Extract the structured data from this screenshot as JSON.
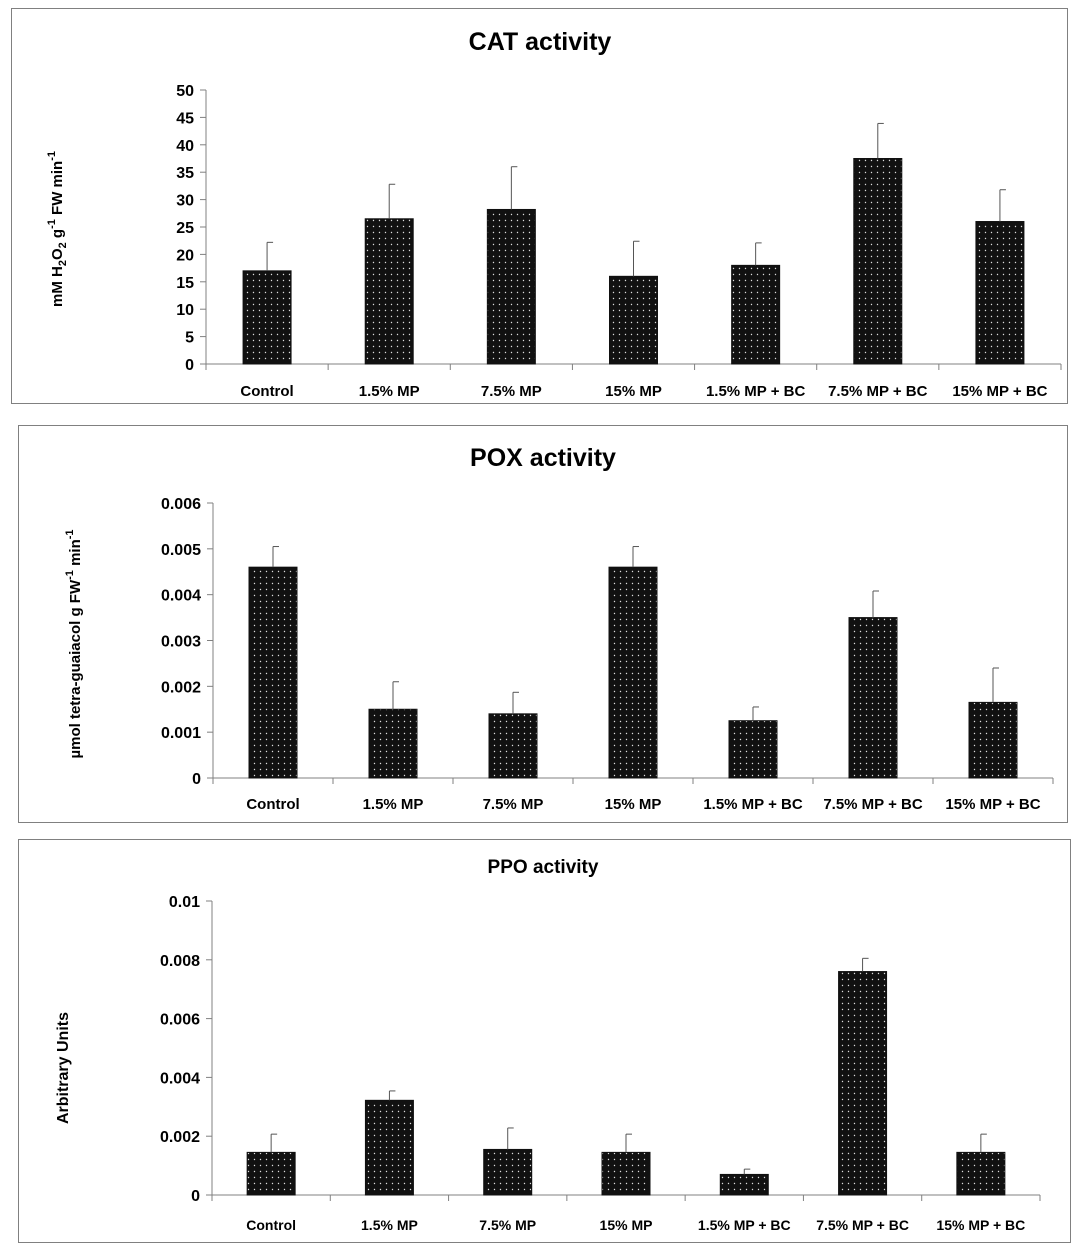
{
  "colors": {
    "bar": "#111111",
    "dot": "#ffffff",
    "axis": "#808080",
    "border": "#808080"
  },
  "chart_data": [
    {
      "type": "bar",
      "title": "CAT activity",
      "ylabel_parts": {
        "a": "mM H",
        "sub1": "2",
        "b": "O",
        "sub2": "2",
        "c": " g",
        "sup1": "-1",
        "d": " FW min",
        "sup2": "-1"
      },
      "ylabel": "mM H2O2 g-1 FW min-1",
      "xlabel": "",
      "categories": [
        "Control",
        "1.5% MP",
        "7.5% MP",
        "15% MP",
        "1.5% MP + BC",
        "7.5% MP + BC",
        "15% MP + BC"
      ],
      "values": [
        17,
        26.5,
        28.2,
        16,
        18,
        37.5,
        26
      ],
      "errors": [
        5.2,
        6.3,
        7.8,
        6.4,
        4.1,
        6.4,
        5.8
      ],
      "ylim": [
        0,
        50
      ],
      "yticks": [
        "0",
        "5",
        "10",
        "15",
        "20",
        "25",
        "30",
        "35",
        "40",
        "45",
        "50"
      ],
      "ytick_values": [
        0,
        5,
        10,
        15,
        20,
        25,
        30,
        35,
        40,
        45,
        50
      ]
    },
    {
      "type": "bar",
      "title": "POX activity",
      "ylabel_parts": {
        "a": "µmol tetra-guaiacol  g FW",
        "sup1": "-1",
        "b": " min",
        "sup2": "-1"
      },
      "ylabel": "µmol tetra-guaiacol g FW-1 min-1",
      "xlabel": "",
      "categories": [
        "Control",
        "1.5% MP",
        "7.5% MP",
        "15% MP",
        "1.5% MP + BC",
        "7.5% MP + BC",
        "15% MP + BC"
      ],
      "values": [
        0.0046,
        0.0015,
        0.0014,
        0.0046,
        0.00125,
        0.0035,
        0.00165
      ],
      "errors": [
        0.00045,
        0.0006,
        0.00047,
        0.00045,
        0.0003,
        0.00058,
        0.00075
      ],
      "ylim": [
        0,
        0.006
      ],
      "yticks": [
        "0",
        "0.001",
        "0.002",
        "0.003",
        "0.004",
        "0.005",
        "0.006"
      ],
      "ytick_values": [
        0,
        0.001,
        0.002,
        0.003,
        0.004,
        0.005,
        0.006
      ]
    },
    {
      "type": "bar",
      "title": "PPO activity",
      "ylabel": "Arbitrary  Units",
      "xlabel": "",
      "categories": [
        "Control",
        "1.5% MP",
        "7.5% MP",
        "15% MP",
        "1.5% MP + BC",
        "7.5% MP + BC",
        "15% MP + BC"
      ],
      "values": [
        0.00145,
        0.00322,
        0.00155,
        0.00145,
        0.0007,
        0.0076,
        0.00145
      ],
      "errors": [
        0.00062,
        0.00032,
        0.00073,
        0.00062,
        0.00018,
        0.00045,
        0.00062
      ],
      "ylim": [
        0,
        0.01
      ],
      "yticks": [
        "0",
        "0.002",
        "0.004",
        "0.006",
        "0.008",
        "0.01"
      ],
      "ytick_values": [
        0,
        0.002,
        0.004,
        0.006,
        0.008,
        0.01
      ]
    }
  ]
}
